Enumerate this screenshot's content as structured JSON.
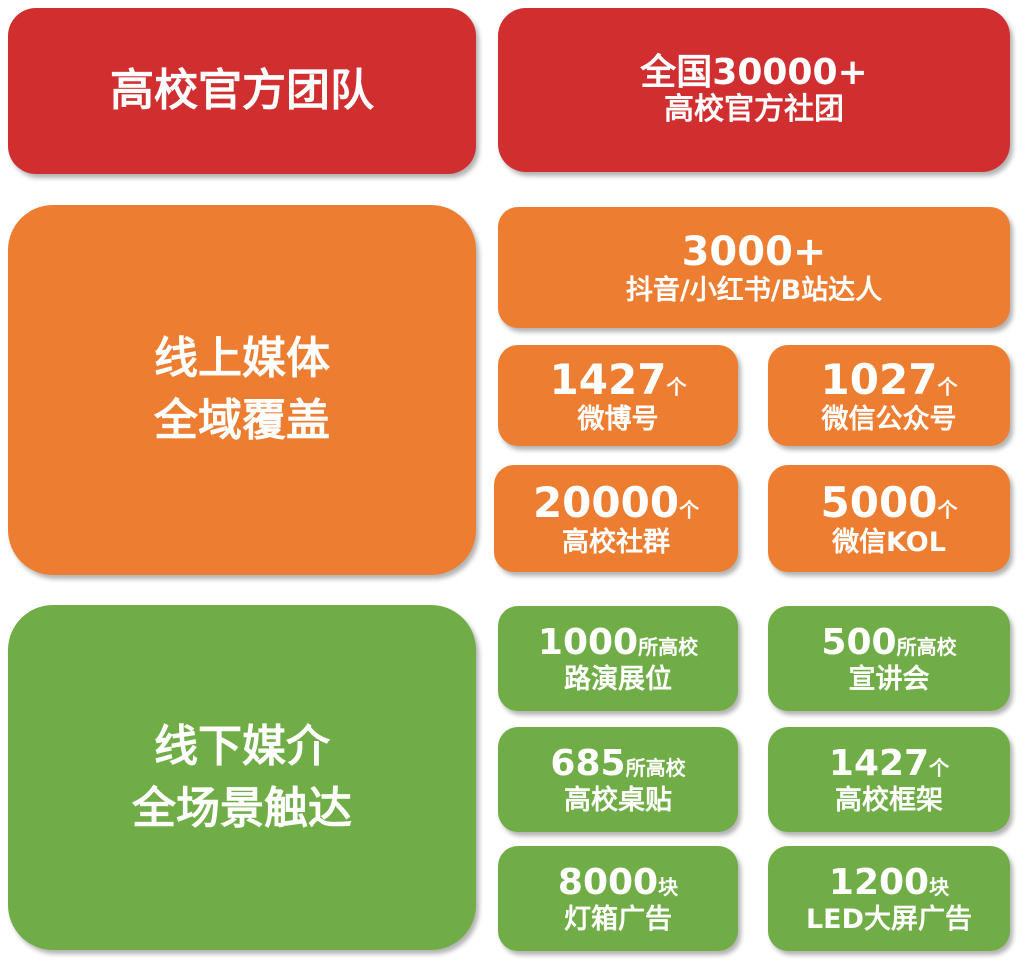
{
  "colors": {
    "red": "#D12E2F",
    "orange": "#ED7D31",
    "green": "#70AD47"
  },
  "team": {
    "title": "高校官方团队",
    "stat_line1": "全国30000+",
    "stat_line2": "高校官方社团"
  },
  "online": {
    "title_line1": "线上媒体",
    "title_line2": "全域覆盖",
    "top": {
      "num": "3000+",
      "label": "抖音/小红书/B站达人"
    },
    "items": [
      {
        "num": "1427",
        "unit": "个",
        "label": "微博号"
      },
      {
        "num": "1027",
        "unit": "个",
        "label": "微信公众号"
      },
      {
        "num": "20000",
        "unit": "个",
        "label": "高校社群"
      },
      {
        "num": "5000",
        "unit": "个",
        "label": "微信KOL"
      }
    ]
  },
  "offline": {
    "title_line1": "线下媒介",
    "title_line2": "全场景触达",
    "items": [
      {
        "num": "1000",
        "unit": "所高校",
        "label": "路演展位"
      },
      {
        "num": "500",
        "unit": "所高校",
        "label": "宣讲会"
      },
      {
        "num": "685",
        "unit": "所高校",
        "label": "高校桌贴"
      },
      {
        "num": "1427",
        "unit": "个",
        "label": "高校框架"
      },
      {
        "num": "8000",
        "unit": "块",
        "label": "灯箱广告"
      },
      {
        "num": "1200",
        "unit": "块",
        "label": "LED大屏广告"
      }
    ]
  }
}
